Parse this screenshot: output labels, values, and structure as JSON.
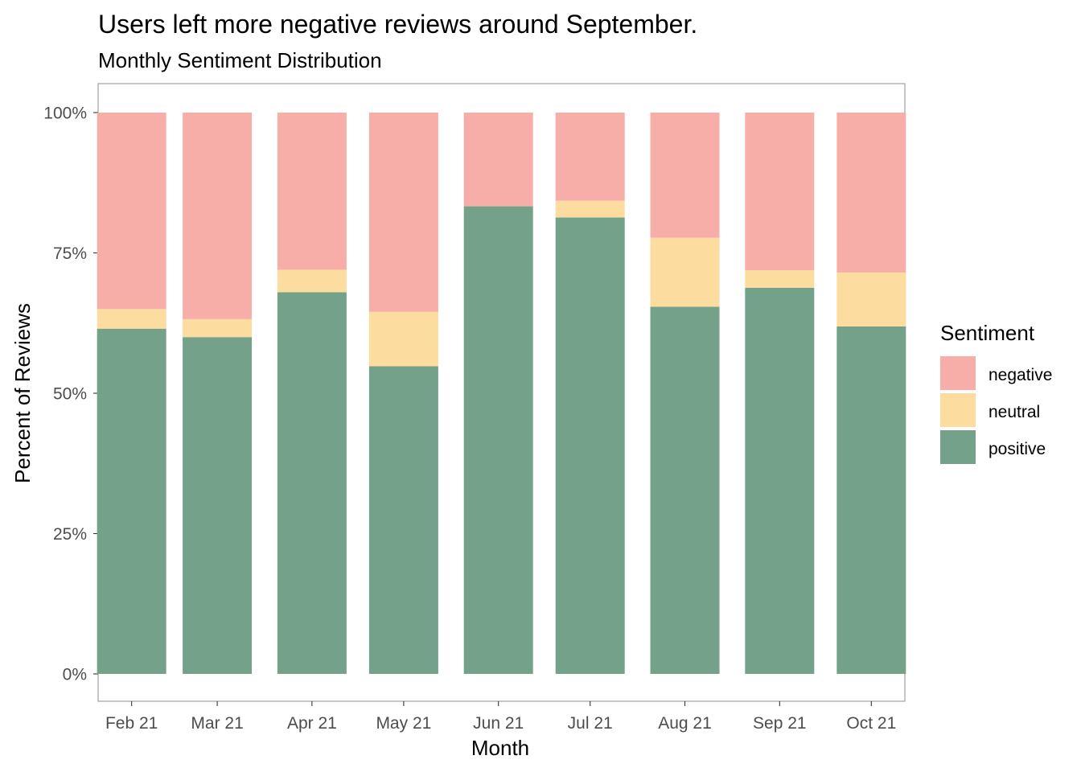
{
  "chart_data": {
    "type": "bar",
    "stacked": true,
    "percent": true,
    "title": "Users left more negative reviews around September.",
    "subtitle": "Monthly Sentiment Distribution",
    "xlabel": "Month",
    "ylabel": "Percent of Reviews",
    "ylim": [
      0,
      100
    ],
    "yticks": [
      0,
      25,
      50,
      75,
      100
    ],
    "ytick_labels": [
      "0%",
      "25%",
      "50%",
      "75%",
      "100%"
    ],
    "categories": [
      "Feb 21",
      "Mar 21",
      "Apr 21",
      "May 21",
      "Jun 21",
      "Jul 21",
      "Aug 21",
      "Sep 21",
      "Oct 21"
    ],
    "dates": [
      "2021-02-01",
      "2021-03-01",
      "2021-04-01",
      "2021-05-01",
      "2021-06-01",
      "2021-07-01",
      "2021-08-01",
      "2021-09-01",
      "2021-10-01"
    ],
    "series": [
      {
        "name": "positive",
        "color": "#74a189",
        "values": [
          61.5,
          60.0,
          68.0,
          54.8,
          83.3,
          81.3,
          65.4,
          68.8,
          61.9
        ]
      },
      {
        "name": "neutral",
        "color": "#fcdc9f",
        "values": [
          3.5,
          3.2,
          4.0,
          9.7,
          0.0,
          3.0,
          12.3,
          3.1,
          9.6
        ]
      },
      {
        "name": "negative",
        "color": "#f7aea8",
        "values": [
          35.0,
          36.8,
          28.0,
          35.5,
          16.7,
          15.7,
          22.3,
          28.1,
          28.5
        ]
      }
    ],
    "legend": {
      "title": "Sentiment",
      "position": "right",
      "items": [
        {
          "label": "negative",
          "color": "#f7aea8"
        },
        {
          "label": "neutral",
          "color": "#fcdc9f"
        },
        {
          "label": "positive",
          "color": "#74a189"
        }
      ]
    },
    "grid": false
  }
}
